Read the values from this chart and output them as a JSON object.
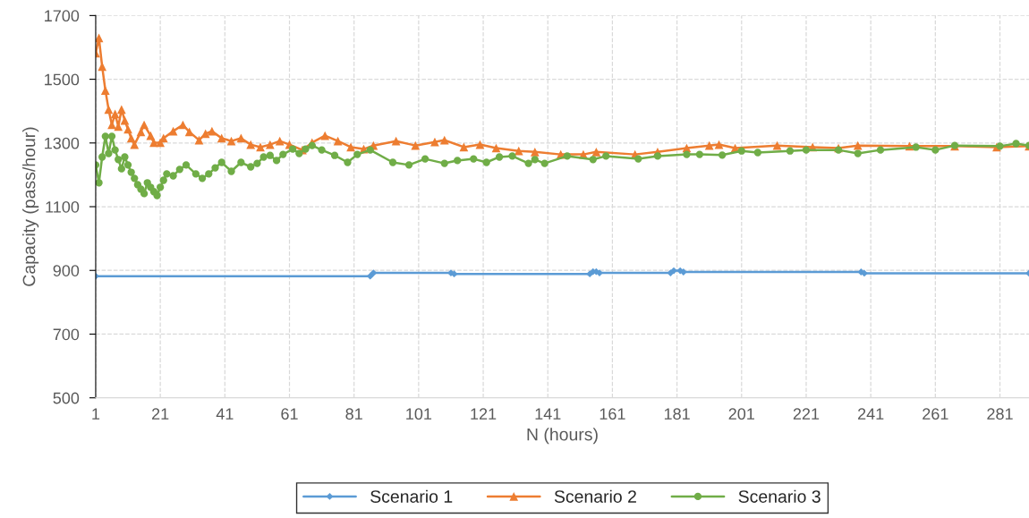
{
  "chart_data": {
    "type": "line",
    "xlabel": "N (hours)",
    "ylabel": "Capacity (pass/hour)",
    "xlim": [
      1,
      290
    ],
    "xticks": [
      1,
      21,
      41,
      61,
      81,
      101,
      121,
      141,
      161,
      181,
      201,
      221,
      241,
      261,
      281
    ],
    "ylim": [
      500,
      1700
    ],
    "yticks": [
      500,
      700,
      900,
      1100,
      1300,
      1500,
      1700
    ],
    "grid": true,
    "legend": "bottom",
    "line_style": "solid",
    "series": [
      {
        "name": "Scenario 1",
        "color": "#5b9bd5",
        "marker": "diamond",
        "x": [
          1,
          86,
          87,
          111,
          112,
          154,
          155,
          156,
          157,
          179,
          180,
          182,
          183,
          238,
          239,
          290
        ],
        "values": [
          882,
          882,
          892,
          892,
          889,
          889,
          896,
          896,
          892,
          892,
          899,
          899,
          895,
          895,
          891,
          891
        ]
      },
      {
        "name": "Scenario 2",
        "color": "#ed7d31",
        "marker": "triangle",
        "x": [
          1,
          2,
          3,
          4,
          5,
          6,
          7,
          8,
          9,
          10,
          11,
          12,
          13,
          15,
          16,
          18,
          19,
          21,
          22,
          25,
          28,
          30,
          33,
          35,
          37,
          40,
          43,
          46,
          49,
          52,
          55,
          58,
          61,
          65,
          68,
          72,
          76,
          80,
          84,
          87,
          94,
          100,
          106,
          109,
          115,
          120,
          125,
          132,
          137,
          145,
          152,
          156,
          168,
          175,
          184,
          191,
          194,
          199,
          212,
          223,
          231,
          237,
          253,
          267,
          280,
          290
        ],
        "values": [
          1582,
          1630,
          1540,
          1465,
          1405,
          1357,
          1391,
          1352,
          1405,
          1371,
          1343,
          1315,
          1295,
          1335,
          1357,
          1323,
          1301,
          1301,
          1315,
          1337,
          1357,
          1335,
          1309,
          1329,
          1337,
          1315,
          1306,
          1315,
          1295,
          1287,
          1295,
          1306,
          1295,
          1278,
          1301,
          1323,
          1306,
          1287,
          1281,
          1292,
          1306,
          1292,
          1303,
          1309,
          1287,
          1295,
          1284,
          1275,
          1272,
          1264,
          1264,
          1272,
          1264,
          1272,
          1284,
          1292,
          1295,
          1284,
          1292,
          1287,
          1284,
          1292,
          1290,
          1290,
          1287,
          1290
        ]
      },
      {
        "name": "Scenario 3",
        "color": "#70ad47",
        "marker": "circle",
        "x": [
          1,
          2,
          3,
          4,
          5,
          6,
          7,
          8,
          9,
          10,
          11,
          12,
          13,
          14,
          15,
          16,
          17,
          18,
          19,
          20,
          21,
          22,
          23,
          25,
          27,
          29,
          32,
          34,
          36,
          38,
          40,
          43,
          46,
          49,
          51,
          53,
          55,
          57,
          59,
          62,
          64,
          66,
          68,
          71,
          75,
          79,
          82,
          86,
          93,
          98,
          103,
          109,
          113,
          118,
          122,
          126,
          130,
          135,
          137,
          140,
          147,
          155,
          159,
          169,
          175,
          184,
          188,
          195,
          201,
          206,
          216,
          221,
          231,
          237,
          244,
          255,
          261,
          267,
          281,
          286,
          290
        ],
        "values": [
          1231,
          1175,
          1256,
          1321,
          1267,
          1321,
          1278,
          1248,
          1219,
          1256,
          1231,
          1208,
          1189,
          1169,
          1155,
          1141,
          1175,
          1161,
          1147,
          1135,
          1161,
          1183,
          1203,
          1197,
          1217,
          1231,
          1203,
          1189,
          1203,
          1222,
          1239,
          1211,
          1239,
          1225,
          1236,
          1256,
          1261,
          1245,
          1264,
          1281,
          1267,
          1281,
          1292,
          1278,
          1261,
          1239,
          1264,
          1278,
          1239,
          1231,
          1250,
          1236,
          1245,
          1250,
          1239,
          1256,
          1259,
          1236,
          1248,
          1236,
          1259,
          1248,
          1259,
          1250,
          1259,
          1264,
          1264,
          1262,
          1275,
          1270,
          1275,
          1278,
          1278,
          1267,
          1278,
          1287,
          1278,
          1292,
          1290,
          1298,
          1292
        ]
      }
    ]
  }
}
